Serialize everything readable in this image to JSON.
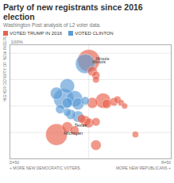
{
  "chart_data": {
    "type": "scatter",
    "title": "Party of new registrants since 2016 election",
    "subtitle": "Washington Post analysis of L2 voter data.",
    "ylabel": "HIGHER DENSITY OF NEW INDEPENDENTS +",
    "xlabel": [
      "D=50",
      "+ MORE NEW DEMOCRATIC VOTERS",
      "MORE NEW REPUBLICANS +",
      "R=50"
    ],
    "annotations": [
      {
        "text": "100%"
      }
    ],
    "xlim": [
      0.28,
      0.73
    ],
    "ylim": [
      0.0,
      1.08
    ],
    "xticks": [
      0.5
    ],
    "yticks": [
      0.25,
      0.5,
      0.75,
      1.0
    ],
    "grid": true,
    "tick_labels": false,
    "legend": "top",
    "series": [
      {
        "name": "VOTED TRUMP IN 2016",
        "color": "#e8614c",
        "x": [
          0.5,
          0.51,
          0.52,
          0.52,
          0.51,
          0.54,
          0.55,
          0.57,
          0.58,
          0.59,
          0.6,
          0.48,
          0.49,
          0.5,
          0.52,
          0.44,
          0.46,
          0.41,
          0.63,
          0.52
        ],
        "values": [
          0.93,
          0.83,
          0.79,
          0.75,
          0.53,
          0.55,
          0.52,
          0.54,
          0.56,
          0.53,
          0.5,
          0.38,
          0.36,
          0.34,
          0.35,
          0.3,
          0.27,
          0.23,
          0.23,
          0.13
        ],
        "sizes": [
          420,
          80,
          55,
          40,
          100,
          200,
          75,
          60,
          45,
          35,
          30,
          65,
          90,
          80,
          60,
          100,
          70,
          400,
          35,
          90
        ],
        "labels": [
          "Illinois",
          null,
          null,
          null,
          null,
          null,
          null,
          null,
          null,
          null,
          null,
          null,
          null,
          null,
          null,
          "Texas",
          null,
          "Michigan",
          null,
          null
        ]
      },
      {
        "name": "VOTED CLINTON",
        "color": "#5b9bd5",
        "x": [
          0.49,
          0.44,
          0.41,
          0.43,
          0.46,
          0.44,
          0.47,
          0.49,
          0.42,
          0.44,
          0.45,
          0.47
        ],
        "values": [
          0.9,
          0.69,
          0.62,
          0.57,
          0.57,
          0.53,
          0.52,
          0.55,
          0.47,
          0.44,
          0.42,
          0.4
        ],
        "sizes": [
          320,
          180,
          130,
          350,
          220,
          90,
          120,
          60,
          70,
          55,
          85,
          110
        ],
        "labels": [
          "Illinois",
          null,
          null,
          null,
          null,
          null,
          null,
          null,
          null,
          null,
          null,
          null
        ]
      }
    ]
  }
}
